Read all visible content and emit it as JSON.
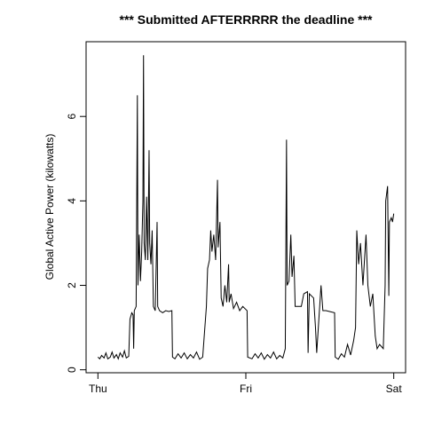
{
  "chart_data": {
    "type": "line",
    "title": "*** Submitted AFTERRRRR the deadline ***",
    "y_label": "Global Active Power (kilowatts)",
    "xlim": [
      -1.92,
      49.92
    ],
    "ylim": [
      -0.07,
      7.77
    ],
    "xticks": [
      {
        "value": 0,
        "label": "Thu"
      },
      {
        "value": 24,
        "label": "Fri"
      },
      {
        "value": 48,
        "label": "Sat"
      }
    ],
    "yticks": [
      0,
      2,
      4,
      6
    ],
    "grid": false,
    "series": [
      {
        "color": "#000000",
        "x": [
          0,
          0.3,
          0.6,
          1,
          1.3,
          1.6,
          2,
          2.3,
          2.6,
          3,
          3.3,
          3.6,
          4,
          4.3,
          4.6,
          5,
          5.2,
          5.5,
          5.7,
          5.8,
          5.9,
          6.2,
          6.4,
          6.5,
          6.7,
          6.9,
          7.1,
          7.3,
          7.4,
          7.5,
          7.7,
          7.9,
          8.1,
          8.3,
          8.4,
          8.6,
          8.8,
          9,
          9.3,
          9.6,
          9.7,
          10,
          10.5,
          11,
          11.5,
          12,
          12.1,
          12.5,
          13,
          13.5,
          14,
          14.5,
          15,
          15.5,
          16,
          16.5,
          17,
          17.3,
          17.6,
          17.8,
          18.1,
          18.3,
          18.5,
          18.8,
          19.1,
          19.4,
          19.5,
          19.8,
          20,
          20.3,
          20.6,
          20.9,
          21.2,
          21.3,
          21.6,
          22,
          22.5,
          23,
          23.5,
          24.2,
          24.3,
          25,
          25.5,
          26,
          26.5,
          27,
          27.5,
          28,
          28.5,
          29,
          29.5,
          30,
          30.4,
          30.6,
          30.7,
          31,
          31.3,
          31.5,
          31.8,
          32,
          33,
          33.4,
          34,
          34.1,
          34.3,
          35,
          35.3,
          35.5,
          36.2,
          36.5,
          37,
          38.4,
          38.5,
          39,
          39.5,
          40,
          40.5,
          41,
          41.5,
          41.8,
          42,
          42.3,
          42.6,
          43,
          43.5,
          43.8,
          44.2,
          44.6,
          45,
          45.3,
          45.7,
          46.3,
          46.6,
          46.7,
          47,
          47.2,
          47.3,
          47.6,
          47.8,
          48
        ],
        "values": [
          0.3,
          0.26,
          0.34,
          0.28,
          0.4,
          0.26,
          0.3,
          0.42,
          0.28,
          0.36,
          0.26,
          0.4,
          0.3,
          0.45,
          0.28,
          0.32,
          1.2,
          1.35,
          1.3,
          0.5,
          1.4,
          1.5,
          6.5,
          2.0,
          3.2,
          2.1,
          2.8,
          4.0,
          7.45,
          3.0,
          2.6,
          4.1,
          2.6,
          5.2,
          3.0,
          2.5,
          3.3,
          1.5,
          1.4,
          3.5,
          1.5,
          1.4,
          1.35,
          1.4,
          1.38,
          1.4,
          0.3,
          0.26,
          0.38,
          0.28,
          0.4,
          0.26,
          0.36,
          0.28,
          0.42,
          0.25,
          0.3,
          0.9,
          1.5,
          2.4,
          2.6,
          3.3,
          2.8,
          3.2,
          2.6,
          4.5,
          2.9,
          3.5,
          1.7,
          1.5,
          2.0,
          1.6,
          2.5,
          1.6,
          1.8,
          1.45,
          1.6,
          1.4,
          1.5,
          1.4,
          0.3,
          0.26,
          0.38,
          0.28,
          0.4,
          0.25,
          0.36,
          0.28,
          0.42,
          0.26,
          0.34,
          0.28,
          0.5,
          5.45,
          2.0,
          2.1,
          3.2,
          2.2,
          2.7,
          1.5,
          1.5,
          1.8,
          1.85,
          0.4,
          1.8,
          1.7,
          1.0,
          0.4,
          2.0,
          1.4,
          1.4,
          1.35,
          0.3,
          0.25,
          0.38,
          0.3,
          0.6,
          0.35,
          0.7,
          1.0,
          3.3,
          2.5,
          3.0,
          2.0,
          3.2,
          2.0,
          1.5,
          1.8,
          0.8,
          0.5,
          0.6,
          0.5,
          2.0,
          4.0,
          4.35,
          1.75,
          3.5,
          3.6,
          3.5,
          3.7
        ]
      }
    ]
  }
}
